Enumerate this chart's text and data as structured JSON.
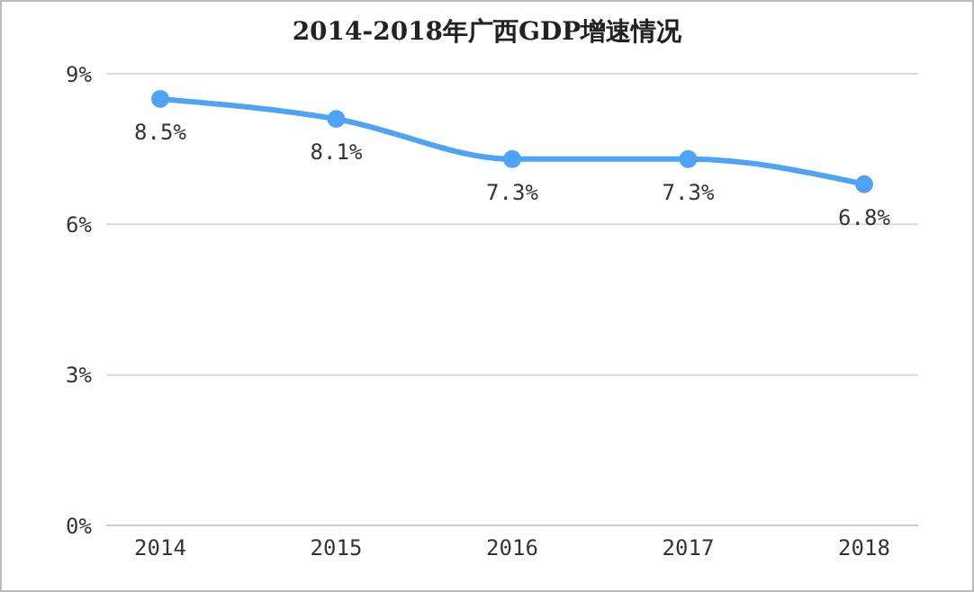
{
  "chart_data": {
    "type": "line",
    "title": "2014-2018年广西GDP增速情况",
    "categories": [
      "2014",
      "2015",
      "2016",
      "2017",
      "2018"
    ],
    "series": [
      {
        "color": "#4da3f5",
        "values": [
          8.5,
          8.1,
          7.3,
          7.3,
          6.8
        ],
        "value_labels": [
          "8.5%",
          "8.1%",
          "7.3%",
          "7.3%",
          "6.8%"
        ]
      }
    ],
    "ylim": [
      0,
      9
    ],
    "yticks": [
      {
        "value": 0,
        "label": "0%"
      },
      {
        "value": 3,
        "label": "3%"
      },
      {
        "value": 6,
        "label": "6%"
      },
      {
        "value": 9,
        "label": "9%"
      }
    ],
    "grid": "y",
    "marker": "circle",
    "line_style": "solid"
  }
}
